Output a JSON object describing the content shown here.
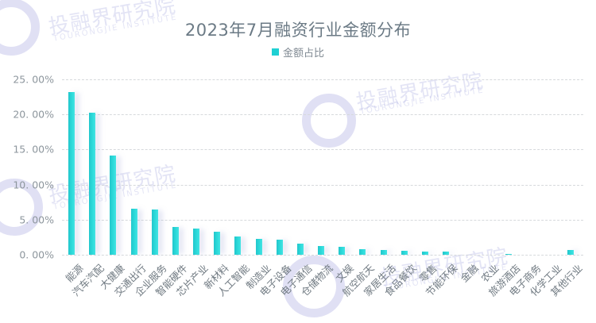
{
  "chart_data": {
    "type": "bar",
    "title": "2023年7月融资行业金额分布",
    "legend": [
      "金额占比"
    ],
    "legend_position": "top",
    "xlabel": "",
    "ylabel": "",
    "ylim": [
      0,
      25
    ],
    "grid": true,
    "y_ticks": [
      "0.00%",
      "5.00%",
      "10.00%",
      "15.00%",
      "20.00%",
      "25.00%"
    ],
    "categories": [
      "能源",
      "汽车汽配",
      "大健康",
      "交通出行",
      "企业服务",
      "智能硬件",
      "芯片产业",
      "新材料",
      "人工智能",
      "制造业",
      "电子设备",
      "电子通信",
      "仓储物流",
      "文娱",
      "航空航天",
      "家居生活",
      "食品餐饮",
      "零售",
      "节能环保",
      "金融",
      "农业",
      "旅游酒店",
      "电子商务",
      "化学工业",
      "其他行业"
    ],
    "series": [
      {
        "name": "金额占比",
        "color": "#28d4d4",
        "values": [
          23.2,
          20.2,
          14.1,
          6.6,
          6.4,
          4.0,
          3.7,
          3.3,
          2.6,
          2.3,
          2.2,
          1.6,
          1.2,
          1.1,
          0.75,
          0.7,
          0.6,
          0.5,
          0.4,
          0.05,
          0.0,
          0.1,
          0.0,
          0.0,
          0.7
        ]
      }
    ]
  },
  "watermark": {
    "text": "投融界研究院",
    "subtext": "TOURONGJIE INSTITUTE"
  }
}
